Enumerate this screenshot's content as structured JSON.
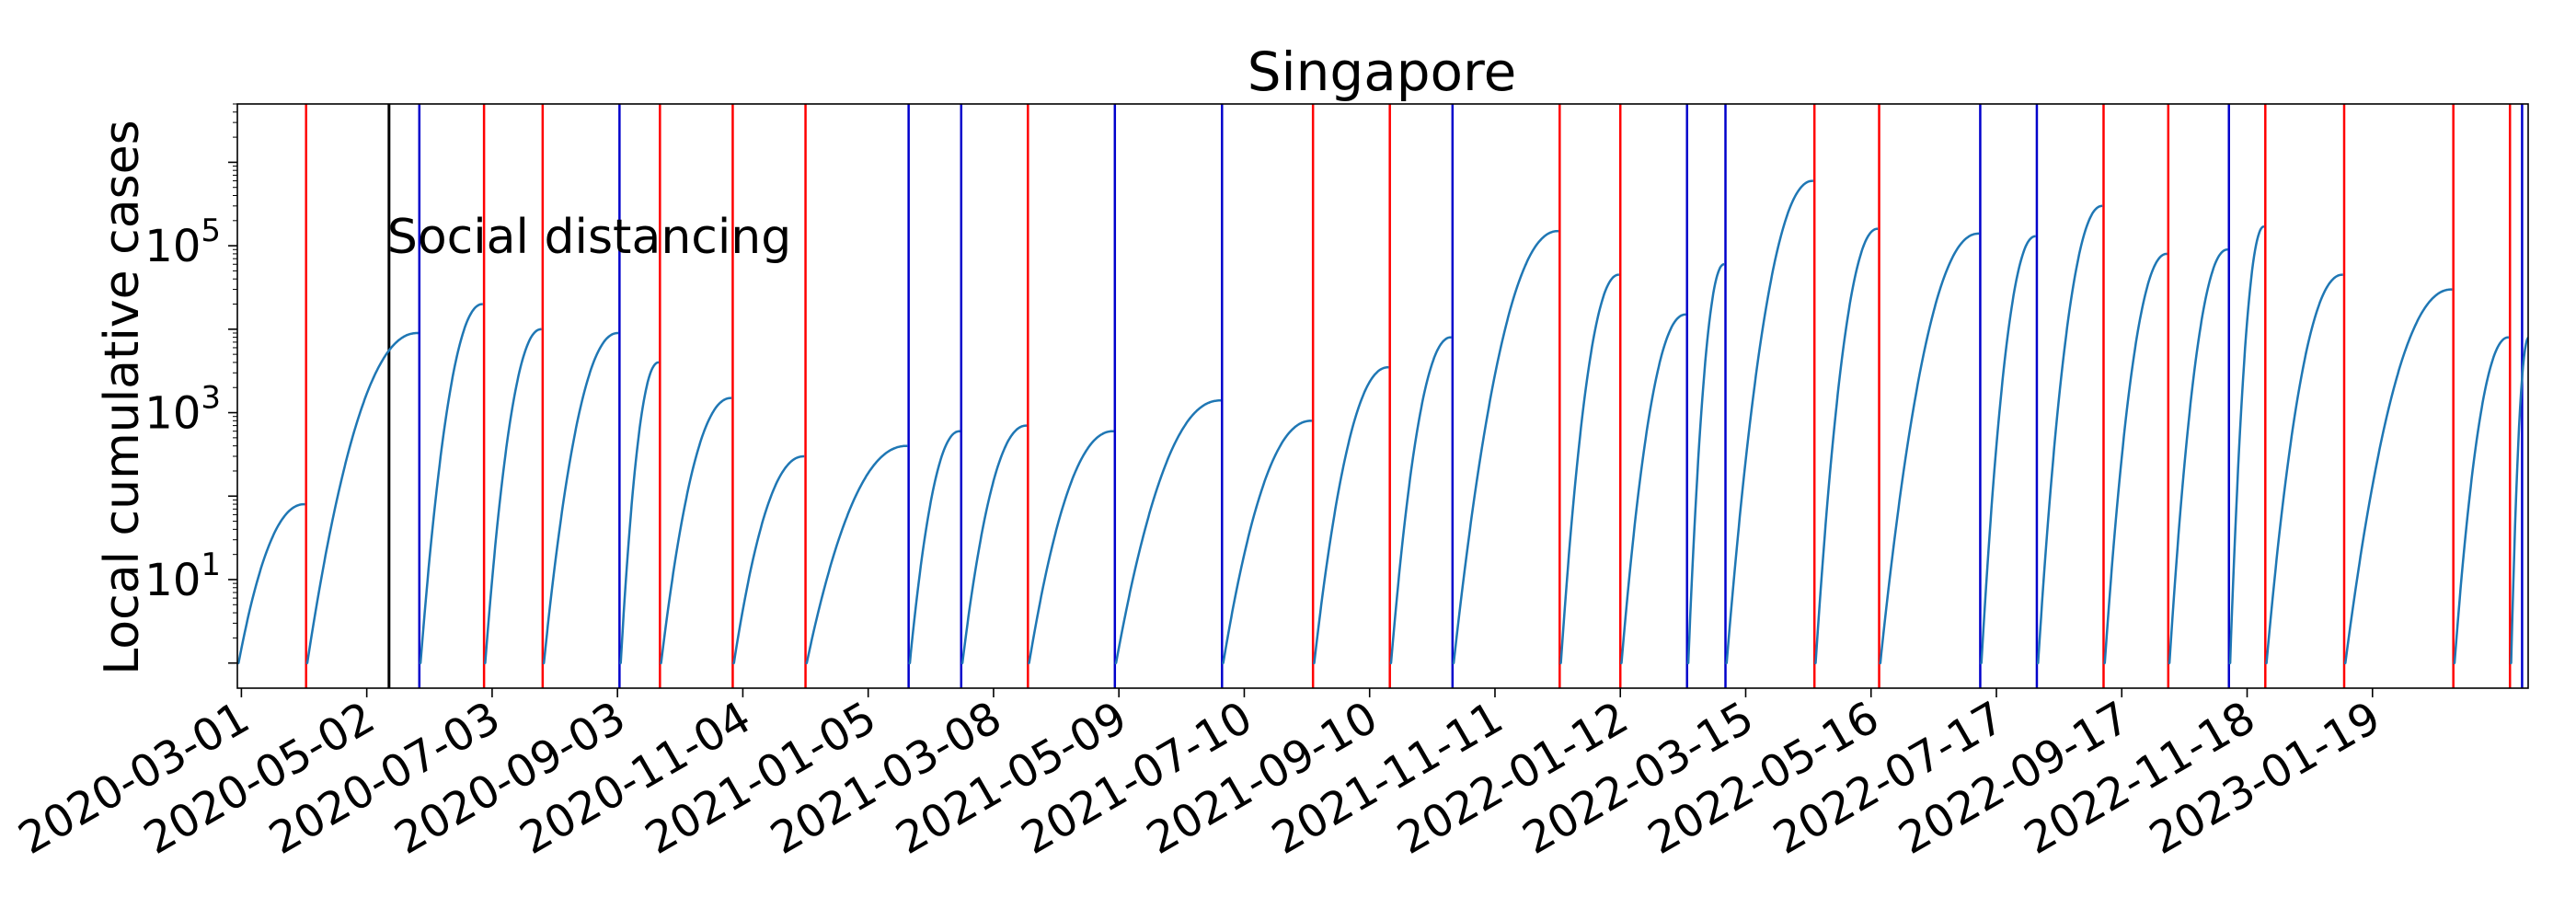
{
  "chart_data": {
    "type": "line",
    "title": "Singapore",
    "xlabel": "",
    "ylabel": "Local cumulative cases",
    "yscale": "log",
    "ylim": [
      0.5,
      5000000
    ],
    "xlim": [
      0,
      1133
    ],
    "x_unit": "days since 2020-02-28",
    "x_tick_labels": [
      "2020-03-01",
      "2020-05-02",
      "2020-07-03",
      "2020-09-03",
      "2020-11-04",
      "2021-01-05",
      "2021-03-08",
      "2021-05-09",
      "2021-07-10",
      "2021-09-10",
      "2021-11-11",
      "2022-01-12",
      "2022-03-15",
      "2022-05-16",
      "2022-07-17",
      "2022-09-17",
      "2022-11-18",
      "2023-01-19"
    ],
    "x_tick_days": [
      2,
      64,
      126,
      188,
      250,
      312,
      374,
      436,
      498,
      560,
      622,
      684,
      746,
      808,
      870,
      932,
      994,
      1056
    ],
    "y_ticks": [
      {
        "value": 10,
        "base": "10",
        "exp": "1"
      },
      {
        "value": 1000,
        "base": "10",
        "exp": "3"
      },
      {
        "value": 100000,
        "base": "10",
        "exp": "5"
      }
    ],
    "annotation": {
      "text": "Social distancing",
      "day": 75,
      "value": 130000
    },
    "social_distancing_day": 75,
    "red_lines_days": [
      34,
      122,
      151,
      209,
      245,
      281,
      391,
      532,
      570,
      654,
      684,
      780,
      812,
      923,
      955,
      1003,
      1042,
      1096,
      1124
    ],
    "blue_lines_days": [
      90,
      189,
      332,
      358,
      434,
      487,
      601,
      717,
      736,
      862,
      890,
      985,
      1130
    ],
    "line_series": {
      "name": "Local cumulative cases",
      "color": "#1f77b4",
      "segments": [
        {
          "start": 0,
          "end": 33,
          "from": 1,
          "to": 80
        },
        {
          "start": 34,
          "end": 89,
          "from": 1,
          "to": 9000
        },
        {
          "start": 90,
          "end": 121,
          "from": 1,
          "to": 20000
        },
        {
          "start": 122,
          "end": 150,
          "from": 1,
          "to": 10000
        },
        {
          "start": 151,
          "end": 188,
          "from": 1,
          "to": 9000
        },
        {
          "start": 189,
          "end": 208,
          "from": 1,
          "to": 4000
        },
        {
          "start": 209,
          "end": 244,
          "from": 1,
          "to": 1500
        },
        {
          "start": 245,
          "end": 280,
          "from": 1,
          "to": 300
        },
        {
          "start": 281,
          "end": 331,
          "from": 1,
          "to": 400
        },
        {
          "start": 332,
          "end": 357,
          "from": 1,
          "to": 600
        },
        {
          "start": 358,
          "end": 390,
          "from": 1,
          "to": 700
        },
        {
          "start": 391,
          "end": 433,
          "from": 1,
          "to": 600
        },
        {
          "start": 434,
          "end": 486,
          "from": 1,
          "to": 1400
        },
        {
          "start": 487,
          "end": 531,
          "from": 1,
          "to": 800
        },
        {
          "start": 532,
          "end": 569,
          "from": 1,
          "to": 3500
        },
        {
          "start": 570,
          "end": 600,
          "from": 1,
          "to": 8000
        },
        {
          "start": 601,
          "end": 653,
          "from": 1,
          "to": 150000
        },
        {
          "start": 654,
          "end": 683,
          "from": 1,
          "to": 45000
        },
        {
          "start": 684,
          "end": 716,
          "from": 1,
          "to": 15000
        },
        {
          "start": 717,
          "end": 735,
          "from": 1,
          "to": 60000
        },
        {
          "start": 736,
          "end": 779,
          "from": 1,
          "to": 600000
        },
        {
          "start": 780,
          "end": 811,
          "from": 1,
          "to": 160000
        },
        {
          "start": 812,
          "end": 861,
          "from": 1,
          "to": 140000
        },
        {
          "start": 862,
          "end": 889,
          "from": 1,
          "to": 130000
        },
        {
          "start": 890,
          "end": 922,
          "from": 1,
          "to": 300000
        },
        {
          "start": 923,
          "end": 954,
          "from": 1,
          "to": 80000
        },
        {
          "start": 955,
          "end": 984,
          "from": 1,
          "to": 90000
        },
        {
          "start": 985,
          "end": 1002,
          "from": 1,
          "to": 170000
        },
        {
          "start": 1003,
          "end": 1041,
          "from": 1,
          "to": 45000
        },
        {
          "start": 1042,
          "end": 1095,
          "from": 1,
          "to": 30000
        },
        {
          "start": 1096,
          "end": 1123,
          "from": 1,
          "to": 8000
        },
        {
          "start": 1124,
          "end": 1133,
          "from": 1,
          "to": 8000
        }
      ]
    }
  }
}
